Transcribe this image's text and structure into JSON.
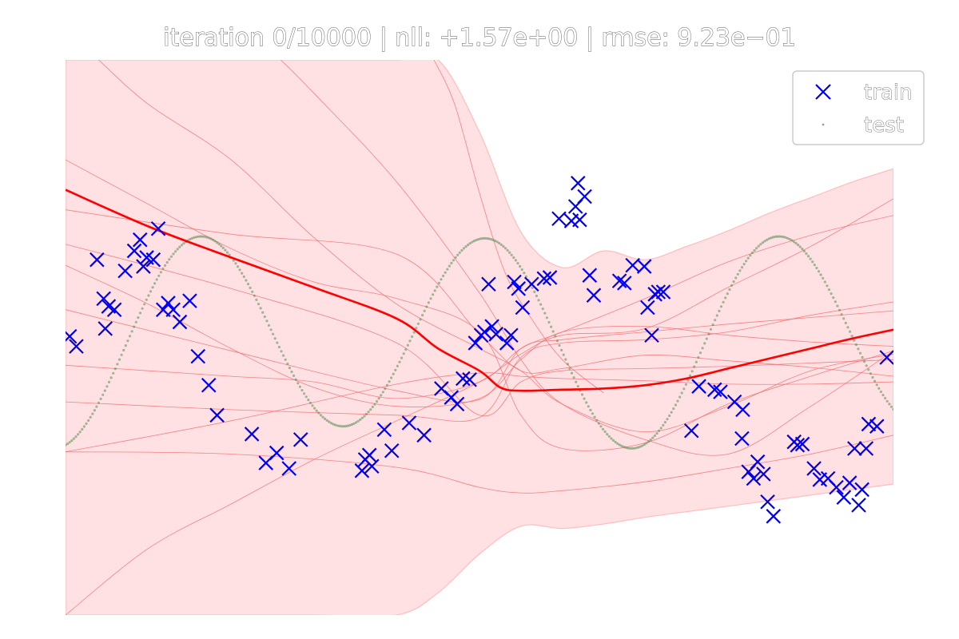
{
  "chart_data": {
    "type": "scatter",
    "title": "iteration 0/10000  |  nll: +1.57e+00  |  rmse: 9.23e−01",
    "xlabel": "",
    "ylabel": "",
    "axes_visible": false,
    "grid": false,
    "xlim": [
      -5,
      5
    ],
    "ylim": [
      -2.5,
      2.5
    ],
    "legend": {
      "placement": "top-right",
      "entries": [
        {
          "label": "train",
          "marker": "x",
          "color": "#0000ee"
        },
        {
          "label": "test",
          "marker": "dot",
          "color": "#2e7d32"
        }
      ]
    },
    "colors": {
      "train": "#0000ee",
      "test": "#2e7d32",
      "mean": "#ff0000",
      "band": "#ffe0e3",
      "band_edge": "#ffbdbd",
      "samples": "#ef6a6a"
    },
    "series": [
      {
        "name": "train",
        "kind": "scatter",
        "marker": "x",
        "x": [
          -4.95,
          -4.87,
          -4.62,
          -4.54,
          -4.52,
          -4.48,
          -4.41,
          -4.28,
          -4.17,
          -4.1,
          -4.06,
          -4.02,
          -3.94,
          -3.88,
          -3.82,
          -3.76,
          -3.7,
          -3.62,
          -3.5,
          -3.4,
          -3.27,
          -3.17,
          -2.75,
          -2.58,
          -2.45,
          -2.3,
          -2.16,
          -1.42,
          -1.38,
          -1.33,
          -1.3,
          -1.15,
          -1.06,
          -0.85,
          -0.67,
          -0.46,
          -0.34,
          -0.27,
          -0.2,
          -0.12,
          -0.05,
          0.02,
          0.06,
          0.11,
          0.15,
          0.2,
          0.33,
          0.38,
          0.42,
          0.47,
          0.52,
          0.63,
          0.78,
          0.85,
          0.96,
          1.11,
          1.16,
          1.19,
          1.21,
          1.27,
          1.33,
          1.38,
          1.69,
          1.75,
          1.85,
          1.99,
          2.03,
          2.08,
          2.12,
          2.16,
          2.22,
          2.56,
          2.65,
          2.84,
          2.91,
          3.17,
          3.25,
          3.31,
          3.36,
          3.43,
          3.48,
          3.55,
          3.8,
          3.84,
          3.9,
          4.04,
          4.11,
          4.21,
          4.31,
          4.4,
          4.47,
          4.53,
          4.58,
          4.62,
          4.67,
          4.7,
          4.8,
          4.92,
          3.08,
          3.18
        ],
        "y": [
          0.01,
          -0.08,
          0.7,
          0.35,
          0.08,
          0.28,
          0.25,
          0.6,
          0.78,
          0.88,
          0.64,
          0.72,
          0.7,
          0.98,
          0.25,
          0.31,
          0.25,
          0.14,
          0.33,
          -0.17,
          -0.43,
          -0.7,
          -0.87,
          -1.13,
          -1.04,
          -1.18,
          -0.92,
          -1.2,
          -1.1,
          -1.06,
          -1.16,
          -0.83,
          -1.02,
          -0.77,
          -0.88,
          -0.46,
          -0.54,
          -0.6,
          -0.37,
          -0.38,
          -0.05,
          0.02,
          0.05,
          0.48,
          0.1,
          0.03,
          -0.05,
          0.02,
          0.5,
          0.44,
          0.27,
          0.48,
          0.53,
          0.54,
          1.07,
          1.05,
          1.18,
          1.39,
          1.06,
          1.27,
          0.56,
          0.38,
          0.51,
          0.49,
          0.65,
          0.64,
          0.27,
          0.02,
          0.39,
          0.41,
          0.41,
          -0.84,
          -0.44,
          -0.47,
          -0.49,
          -0.91,
          -1.21,
          -1.27,
          -1.12,
          -1.23,
          -1.48,
          -1.61,
          -0.94,
          -0.97,
          -0.96,
          -1.18,
          -1.28,
          -1.27,
          -1.35,
          -1.44,
          -1.31,
          -1.0,
          -1.51,
          -1.37,
          -1.0,
          -0.78,
          -0.8,
          -0.18,
          -0.58,
          -0.65
        ]
      },
      {
        "name": "test",
        "kind": "dense-dots",
        "function": "0.9*sin(1.8*x+1.4) - 0.1*sin(0.9*x)",
        "x_range": [
          -5,
          5
        ],
        "samples": 400
      },
      {
        "name": "posterior mean",
        "kind": "line",
        "x": [
          -5,
          -4,
          -3,
          -2,
          -1,
          -0.5,
          0,
          0.25,
          0.5,
          1,
          1.5,
          2,
          2.5,
          3,
          3.5,
          4,
          4.5,
          5
        ],
        "y": [
          1.33,
          1.0,
          0.72,
          0.45,
          0.17,
          -0.1,
          -0.3,
          -0.45,
          -0.48,
          -0.47,
          -0.46,
          -0.43,
          -0.37,
          -0.28,
          -0.19,
          -0.1,
          -0.01,
          0.07
        ]
      },
      {
        "name": "uncertainty band",
        "kind": "area",
        "x": [
          -5,
          -4,
          -3,
          -2,
          -1,
          -0.5,
          0,
          0.5,
          1,
          1.5,
          2,
          2.5,
          3,
          3.5,
          4,
          4.5,
          5
        ],
        "y_upper": [
          2.5,
          2.5,
          2.5,
          2.5,
          2.5,
          2.5,
          1.85,
          0.95,
          0.63,
          0.78,
          0.7,
          0.82,
          0.96,
          1.12,
          1.26,
          1.4,
          1.52
        ],
        "y_lower": [
          -2.5,
          -2.5,
          -2.5,
          -2.5,
          -2.5,
          -2.3,
          -1.95,
          -1.7,
          -1.72,
          -1.68,
          -1.62,
          -1.57,
          -1.52,
          -1.47,
          -1.42,
          -1.37,
          -1.32
        ]
      },
      {
        "name": "posterior sample 1",
        "kind": "line-thin",
        "x": [
          -5,
          -3,
          -1,
          0,
          0.5,
          1,
          2,
          3,
          4,
          5
        ],
        "y": [
          1.15,
          0.93,
          0.75,
          0.03,
          -0.3,
          -0.28,
          -0.16,
          -0.21,
          -0.27,
          -0.35
        ]
      },
      {
        "name": "posterior sample 2",
        "kind": "line-thin",
        "x": [
          -5,
          -3,
          -1,
          0,
          0.5,
          1,
          2,
          3,
          4,
          5
        ],
        "y": [
          0.84,
          0.44,
          -0.05,
          -0.7,
          -0.4,
          -0.3,
          -0.28,
          -0.26,
          -0.23,
          -0.2
        ]
      },
      {
        "name": "posterior sample 3",
        "kind": "line-thin",
        "x": [
          -5,
          -3,
          -1,
          0,
          0.5,
          1,
          2,
          3,
          4,
          5
        ],
        "y": [
          -0.58,
          -0.65,
          -0.7,
          -0.72,
          -0.18,
          -0.05,
          -0.02,
          0.05,
          0.2,
          0.32
        ]
      },
      {
        "name": "posterior sample 4",
        "kind": "line-thin",
        "x": [
          -5,
          -3,
          -1,
          0,
          0.5,
          1,
          2,
          3,
          4,
          5
        ],
        "y": [
          -1.03,
          -0.75,
          -0.42,
          -0.32,
          -0.35,
          -0.37,
          -0.39,
          -0.42,
          -0.42,
          -0.4
        ]
      },
      {
        "name": "posterior sample 5",
        "kind": "line-thin",
        "x": [
          -5,
          -3,
          -1,
          0,
          0.5,
          1,
          2,
          3,
          4,
          5
        ],
        "y": [
          -1.03,
          -1.05,
          -1.17,
          -1.35,
          -1.4,
          -1.38,
          -1.3,
          -1.18,
          -1.05,
          -0.88
        ]
      },
      {
        "name": "posterior sample 6",
        "kind": "line-thin",
        "x": [
          -5,
          -3,
          -1,
          0,
          0.5,
          1,
          2,
          3,
          4,
          5
        ],
        "y": [
          0.25,
          -0.12,
          -0.48,
          -0.56,
          -0.1,
          -0.02,
          0.05,
          0.12,
          0.18,
          0.24
        ]
      },
      {
        "name": "posterior sample 7",
        "kind": "line-thin",
        "x": [
          -5,
          -4,
          -3,
          -2,
          -1,
          0,
          0.5,
          1,
          2,
          3,
          4,
          5
        ],
        "y": [
          -2.5,
          -1.9,
          -1.5,
          -1.1,
          -0.75,
          -0.4,
          -0.15,
          0.02,
          0.08,
          0.45,
          0.82,
          1.25
        ]
      },
      {
        "name": "posterior sample 8",
        "kind": "line-thin",
        "x": [
          -5,
          -4,
          -3,
          -2,
          -1,
          0,
          0.5,
          1,
          2,
          3,
          4,
          5
        ],
        "y": [
          -0.25,
          -0.3,
          -0.35,
          -0.4,
          -0.55,
          -0.4,
          -0.1,
          0.05,
          0.35,
          0.68,
          0.92,
          1.1
        ]
      },
      {
        "name": "posterior sample 9",
        "kind": "line-thin",
        "x": [
          -5,
          -4,
          -3,
          -2,
          -1,
          0,
          0.5,
          1,
          2,
          3,
          4,
          5
        ],
        "y": [
          0.65,
          0.3,
          -0.1,
          -0.45,
          -0.62,
          -0.55,
          -0.2,
          0.05,
          0.1,
          0.02,
          -0.04,
          -0.08
        ]
      },
      {
        "name": "posterior sample 10",
        "kind": "line-thin",
        "x": [
          -5,
          -4,
          -3,
          -2,
          -1,
          0,
          0.5,
          1,
          2,
          3,
          4,
          5
        ],
        "y": [
          1.6,
          1.2,
          0.8,
          0.5,
          0.35,
          0.05,
          -0.7,
          -1.0,
          -0.95,
          -0.6,
          -0.35,
          -0.12
        ]
      },
      {
        "name": "posterior sample 11",
        "kind": "line-thin",
        "x": [
          -4.6,
          -4,
          -3,
          -2,
          -1,
          0,
          0.5,
          1,
          2,
          3,
          4,
          5
        ],
        "y": [
          2.5,
          2.1,
          1.6,
          0.9,
          0.3,
          -0.1,
          -0.3,
          -0.6,
          -0.85,
          -0.62,
          -0.3,
          -0.15
        ]
      },
      {
        "name": "posterior sample 12",
        "kind": "line-thin",
        "x": [
          -2.4,
          -2,
          -1,
          0,
          0.5,
          1,
          2,
          3,
          4,
          5
        ],
        "y": [
          2.5,
          2.2,
          1.4,
          0.4,
          -0.2,
          -0.6,
          -0.92,
          -1.05,
          -0.62,
          -0.12
        ]
      },
      {
        "name": "posterior sample 13",
        "kind": "line-thin",
        "x": [
          -0.55,
          -0.3,
          0,
          0.3,
          0.6,
          1,
          1.5
        ],
        "y": [
          2.5,
          2.1,
          1.3,
          0.6,
          0.2,
          -0.2,
          -0.5
        ]
      }
    ]
  }
}
